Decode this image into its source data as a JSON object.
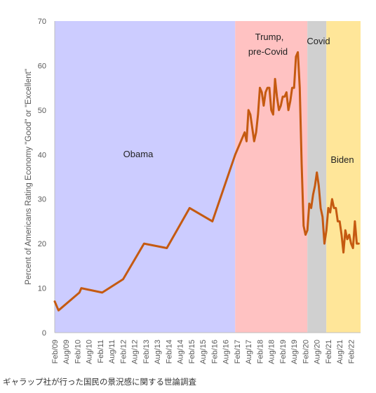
{
  "caption": "ギャラップ社が行った国民の景況感に関する世論調査",
  "colors": {
    "obama": "#ccccff",
    "trump": "#ffc2c2",
    "covid": "#d0d0d0",
    "biden": "#ffe699",
    "line": "#c55a11",
    "axis": "#bfbfbf",
    "text": "#595959"
  },
  "chart_data": {
    "type": "line",
    "ylabel": "Percent of Americans Rating Economy \"Good\" or \"Excellent\"",
    "ylim": [
      0,
      70
    ],
    "yticks": [
      0,
      10,
      20,
      30,
      40,
      50,
      60,
      70
    ],
    "xlim": [
      "2009-02",
      "2022-07"
    ],
    "xticks": [
      "Feb/09",
      "Aug/09",
      "Feb/10",
      "Aug/10",
      "Feb/11",
      "Aug/11",
      "Feb/12",
      "Aug/12",
      "Feb/13",
      "Aug/13",
      "Feb/14",
      "Aug/14",
      "Feb/15",
      "Aug/15",
      "Feb/16",
      "Aug/16",
      "Feb/17",
      "Aug/17",
      "Feb/18",
      "Aug/18",
      "Feb/19",
      "Aug/19",
      "Feb/20",
      "Aug/20",
      "Feb/21",
      "Aug/21",
      "Feb/22"
    ],
    "grid": false,
    "shaded_periods": [
      {
        "label": "Obama",
        "start": "2009-02",
        "end": "2017-01",
        "color": "#ccccff"
      },
      {
        "label": "Trump,\npre-Covid",
        "start": "2017-01",
        "end": "2020-03",
        "color": "#ffc2c2"
      },
      {
        "label": "Covid",
        "start": "2020-03",
        "end": "2021-01",
        "color": "#d0d0d0"
      },
      {
        "label": "Biden",
        "start": "2021-01",
        "end": "2022-07",
        "color": "#ffe699"
      }
    ],
    "annotations": [
      "Obama",
      "Trump,",
      "pre-Covid",
      "Covid",
      "Biden"
    ],
    "series": [
      {
        "color": "#c55a11",
        "x": [
          "2009-02",
          "2009-04",
          "2010-03",
          "2010-04",
          "2011-03",
          "2012-02",
          "2013-01",
          "2014-01",
          "2015-01",
          "2016-01",
          "2017-01",
          "2017-04",
          "2017-05",
          "2017-06",
          "2017-07",
          "2017-08",
          "2017-09",
          "2017-11",
          "2017-12",
          "2018-01",
          "2018-02",
          "2018-03",
          "2018-04",
          "2018-05",
          "2018-06",
          "2018-07",
          "2018-08",
          "2018-09",
          "2018-10",
          "2018-11",
          "2018-12",
          "2019-01",
          "2019-02",
          "2019-03",
          "2019-04",
          "2019-05",
          "2019-06",
          "2019-07",
          "2019-08",
          "2019-09",
          "2019-10",
          "2019-11",
          "2019-12",
          "2020-01",
          "2020-02",
          "2020-03",
          "2020-04",
          "2020-05",
          "2020-06",
          "2020-07",
          "2020-08",
          "2020-09",
          "2020-10",
          "2020-11",
          "2020-12",
          "2021-01",
          "2021-02",
          "2021-03",
          "2021-04",
          "2021-05",
          "2021-06",
          "2021-07",
          "2021-08",
          "2021-09",
          "2021-10",
          "2021-11",
          "2021-12",
          "2022-01",
          "2022-02",
          "2022-03",
          "2022-04",
          "2022-05",
          "2022-06"
        ],
        "y": [
          7,
          5,
          9,
          10,
          9,
          12,
          20,
          19,
          28,
          25,
          40,
          43,
          44,
          45,
          43,
          50,
          49,
          43,
          45,
          49,
          55,
          54,
          51,
          54,
          55,
          55,
          50,
          49,
          57,
          53,
          50,
          51,
          53,
          53,
          54,
          50,
          52,
          55,
          55,
          62,
          63,
          55,
          38,
          24,
          22,
          23,
          29,
          28,
          31,
          33,
          36,
          33,
          28,
          26,
          20,
          23,
          28,
          27,
          30,
          28,
          28,
          25,
          25,
          22,
          18,
          23,
          21,
          22,
          20,
          19,
          25,
          20,
          20
        ]
      }
    ]
  }
}
